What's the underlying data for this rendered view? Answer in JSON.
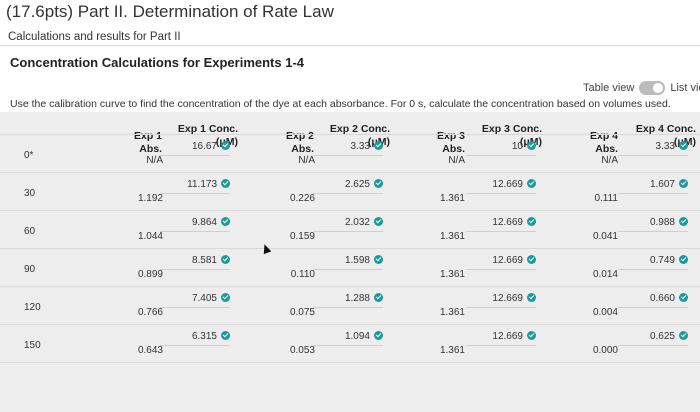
{
  "header": {
    "title": "(17.6pts) Part II. Determination of Rate Law",
    "subtitle": "Calculations and results for Part II"
  },
  "section": {
    "title": "Concentration Calculations for Experiments 1-4",
    "instructions": "Use the calibration curve to find the concentration of the dye at each absorbance. For 0 s, calculate the concentration based on volumes used.",
    "table_view_label": "Table view",
    "list_view_label": "List view"
  },
  "table": {
    "headers": {
      "exp1_abs": "Exp 1 Abs.",
      "exp1_conc_a": "Exp 1 Conc.",
      "exp1_conc_b": "(μM)",
      "exp2_abs": "Exp 2 Abs.",
      "exp2_conc_a": "Exp 2 Conc.",
      "exp2_conc_b": "(μM)",
      "exp3_abs": "Exp 3 Abs.",
      "exp3_conc_a": "Exp 3 Conc.",
      "exp3_conc_b": "(μM)",
      "exp4_abs": "Exp 4 Abs.",
      "exp4_conc_a": "Exp 4 Conc.",
      "exp4_conc_b": "(μM)"
    },
    "rows": [
      {
        "time": "0*",
        "e1a": "N/A",
        "e1c": "16.67",
        "e2a": "N/A",
        "e2c": "3.33",
        "e3a": "N/A",
        "e3c": "10",
        "e4a": "N/A",
        "e4c": "3.33"
      },
      {
        "time": "30",
        "e1a": "1.192",
        "e1c": "11.173",
        "e2a": "0.226",
        "e2c": "2.625",
        "e3a": "1.361",
        "e3c": "12.669",
        "e4a": "0.111",
        "e4c": "1.607"
      },
      {
        "time": "60",
        "e1a": "1.044",
        "e1c": "9.864",
        "e2a": "0.159",
        "e2c": "2.032",
        "e3a": "1.361",
        "e3c": "12.669",
        "e4a": "0.041",
        "e4c": "0.988"
      },
      {
        "time": "90",
        "e1a": "0.899",
        "e1c": "8.581",
        "e2a": "0.110",
        "e2c": "1.598",
        "e3a": "1.361",
        "e3c": "12.669",
        "e4a": "0.014",
        "e4c": "0.749"
      },
      {
        "time": "120",
        "e1a": "0.766",
        "e1c": "7.405",
        "e2a": "0.075",
        "e2c": "1.288",
        "e3a": "1.361",
        "e3c": "12.669",
        "e4a": "0.004",
        "e4c": "0.660"
      },
      {
        "time": "150",
        "e1a": "0.643",
        "e1c": "6.315",
        "e2a": "0.053",
        "e2c": "1.094",
        "e3a": "1.361",
        "e3c": "12.669",
        "e4a": "0.000",
        "e4c": "0.625"
      }
    ]
  }
}
